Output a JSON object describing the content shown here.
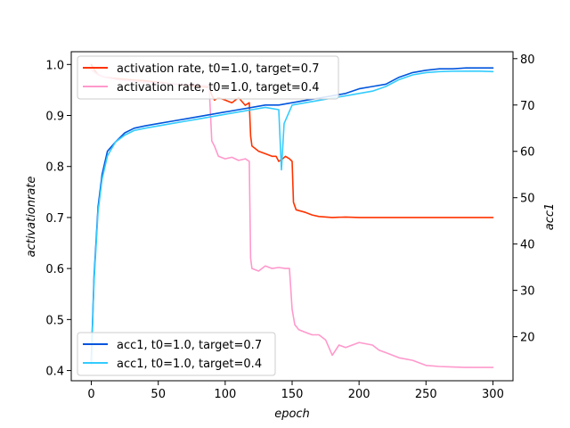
{
  "chart_data": {
    "type": "line",
    "title": "",
    "xlabel": "epoch",
    "ylabel_left": "activationrate",
    "ylabel_right": "acc1",
    "xlim": [
      -15,
      315
    ],
    "ylim_left": [
      0.38,
      1.025
    ],
    "ylim_right": [
      10.5,
      81.5
    ],
    "x_ticks": [
      0,
      50,
      100,
      150,
      200,
      250,
      300
    ],
    "y_ticks_left": [
      0.4,
      0.5,
      0.6,
      0.7,
      0.8,
      0.9,
      1.0
    ],
    "y_ticks_left_labels": [
      "0.4",
      "0.5",
      "0.6",
      "0.7",
      "0.8",
      "0.9",
      "1.0"
    ],
    "y_ticks_right": [
      20,
      30,
      40,
      50,
      60,
      70,
      80
    ],
    "y_ticks_right_labels": [
      "20",
      "30",
      "40",
      "50",
      "60",
      "70",
      "80"
    ],
    "grid": false,
    "legend_left_placement": "top-left",
    "legend_right_placement": "bottom-left",
    "series": [
      {
        "name": "activation rate, t0=1.0, target=0.7",
        "axis": "left",
        "color": "#ff3300",
        "points": [
          [
            0,
            1.0
          ],
          [
            2,
            0.99
          ],
          [
            5,
            0.98
          ],
          [
            10,
            0.975
          ],
          [
            20,
            0.972
          ],
          [
            30,
            0.97
          ],
          [
            40,
            0.968
          ],
          [
            50,
            0.965
          ],
          [
            60,
            0.962
          ],
          [
            70,
            0.96
          ],
          [
            80,
            0.957
          ],
          [
            88,
            0.955
          ],
          [
            90,
            0.94
          ],
          [
            92,
            0.93
          ],
          [
            95,
            0.935
          ],
          [
            100,
            0.93
          ],
          [
            105,
            0.925
          ],
          [
            110,
            0.935
          ],
          [
            115,
            0.92
          ],
          [
            118,
            0.925
          ],
          [
            119,
            0.86
          ],
          [
            120,
            0.84
          ],
          [
            125,
            0.83
          ],
          [
            130,
            0.825
          ],
          [
            135,
            0.82
          ],
          [
            138,
            0.82
          ],
          [
            140,
            0.81
          ],
          [
            143,
            0.815
          ],
          [
            145,
            0.82
          ],
          [
            148,
            0.815
          ],
          [
            150,
            0.81
          ],
          [
            151,
            0.73
          ],
          [
            153,
            0.715
          ],
          [
            160,
            0.71
          ],
          [
            165,
            0.705
          ],
          [
            170,
            0.702
          ],
          [
            180,
            0.7
          ],
          [
            190,
            0.701
          ],
          [
            200,
            0.7
          ],
          [
            220,
            0.7
          ],
          [
            250,
            0.7
          ],
          [
            275,
            0.7
          ],
          [
            300,
            0.7
          ]
        ]
      },
      {
        "name": "activation rate, t0=1.0, target=0.4",
        "axis": "left",
        "color": "#ff99cc",
        "points": [
          [
            0,
            0.99
          ],
          [
            2,
            0.985
          ],
          [
            5,
            0.98
          ],
          [
            10,
            0.975
          ],
          [
            20,
            0.97
          ],
          [
            40,
            0.965
          ],
          [
            60,
            0.962
          ],
          [
            80,
            0.96
          ],
          [
            88,
            0.958
          ],
          [
            90,
            0.85
          ],
          [
            92,
            0.84
          ],
          [
            95,
            0.82
          ],
          [
            100,
            0.815
          ],
          [
            105,
            0.818
          ],
          [
            110,
            0.812
          ],
          [
            115,
            0.815
          ],
          [
            118,
            0.81
          ],
          [
            119,
            0.62
          ],
          [
            120,
            0.6
          ],
          [
            125,
            0.595
          ],
          [
            130,
            0.605
          ],
          [
            135,
            0.6
          ],
          [
            140,
            0.602
          ],
          [
            145,
            0.6
          ],
          [
            148,
            0.6
          ],
          [
            150,
            0.52
          ],
          [
            152,
            0.49
          ],
          [
            155,
            0.48
          ],
          [
            160,
            0.475
          ],
          [
            165,
            0.47
          ],
          [
            170,
            0.47
          ],
          [
            175,
            0.46
          ],
          [
            180,
            0.43
          ],
          [
            185,
            0.45
          ],
          [
            190,
            0.445
          ],
          [
            200,
            0.455
          ],
          [
            210,
            0.45
          ],
          [
            215,
            0.44
          ],
          [
            220,
            0.435
          ],
          [
            230,
            0.425
          ],
          [
            240,
            0.42
          ],
          [
            250,
            0.41
          ],
          [
            260,
            0.408
          ],
          [
            270,
            0.407
          ],
          [
            280,
            0.406
          ],
          [
            290,
            0.406
          ],
          [
            300,
            0.406
          ]
        ]
      },
      {
        "name": "acc1, t0=1.0, target=0.7",
        "axis": "right",
        "color": "#0055dd",
        "points": [
          [
            0,
            15
          ],
          [
            2,
            33
          ],
          [
            5,
            48
          ],
          [
            8,
            55
          ],
          [
            12,
            60
          ],
          [
            18,
            62
          ],
          [
            25,
            64
          ],
          [
            32,
            65
          ],
          [
            40,
            65.5
          ],
          [
            50,
            66
          ],
          [
            60,
            66.5
          ],
          [
            70,
            67
          ],
          [
            80,
            67.5
          ],
          [
            90,
            68
          ],
          [
            100,
            68.5
          ],
          [
            110,
            69
          ],
          [
            120,
            69.5
          ],
          [
            130,
            70
          ],
          [
            140,
            70
          ],
          [
            150,
            70.5
          ],
          [
            160,
            71
          ],
          [
            170,
            71.5
          ],
          [
            180,
            72
          ],
          [
            190,
            72.5
          ],
          [
            200,
            73.5
          ],
          [
            210,
            74
          ],
          [
            220,
            74.5
          ],
          [
            230,
            76
          ],
          [
            240,
            77
          ],
          [
            250,
            77.5
          ],
          [
            260,
            77.8
          ],
          [
            270,
            77.8
          ],
          [
            280,
            78
          ],
          [
            290,
            78
          ],
          [
            300,
            78
          ]
        ]
      },
      {
        "name": "acc1, t0=1.0, target=0.4",
        "axis": "right",
        "color": "#33ccff",
        "points": [
          [
            0,
            14
          ],
          [
            2,
            32
          ],
          [
            5,
            47
          ],
          [
            8,
            54
          ],
          [
            12,
            59
          ],
          [
            18,
            62
          ],
          [
            25,
            63.5
          ],
          [
            32,
            64.5
          ],
          [
            40,
            65
          ],
          [
            50,
            65.5
          ],
          [
            60,
            66
          ],
          [
            70,
            66.5
          ],
          [
            80,
            67
          ],
          [
            90,
            67.5
          ],
          [
            100,
            68
          ],
          [
            110,
            68.5
          ],
          [
            120,
            69
          ],
          [
            130,
            69.5
          ],
          [
            140,
            69
          ],
          [
            142,
            56
          ],
          [
            144,
            66
          ],
          [
            150,
            70
          ],
          [
            160,
            70.5
          ],
          [
            170,
            71
          ],
          [
            180,
            71.5
          ],
          [
            190,
            72
          ],
          [
            200,
            72.5
          ],
          [
            210,
            73
          ],
          [
            220,
            74
          ],
          [
            230,
            75.5
          ],
          [
            240,
            76.5
          ],
          [
            250,
            77
          ],
          [
            260,
            77.2
          ],
          [
            270,
            77.3
          ],
          [
            280,
            77.3
          ],
          [
            290,
            77.3
          ],
          [
            300,
            77.2
          ]
        ]
      }
    ]
  }
}
